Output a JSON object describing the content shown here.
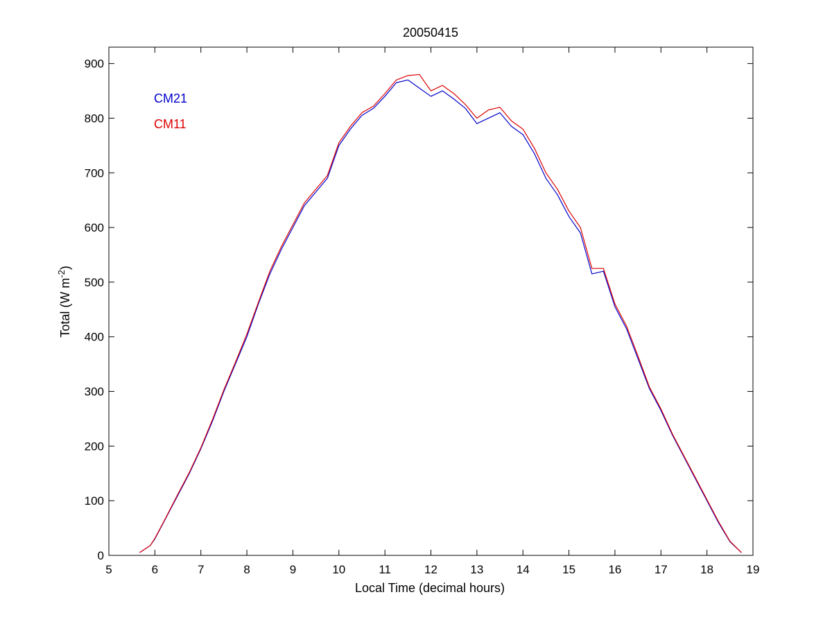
{
  "chart_data": {
    "type": "line",
    "title": "20050415",
    "xlabel": "Local Time (decimal hours)",
    "ylabel": {
      "main": "Total (W m",
      "superscript": "-2",
      "suffix": ")"
    },
    "xlim": [
      5,
      19
    ],
    "ylim": [
      0,
      930
    ],
    "xticks": [
      5,
      6,
      7,
      8,
      9,
      10,
      11,
      12,
      13,
      14,
      15,
      16,
      17,
      18,
      19
    ],
    "yticks": [
      0,
      100,
      200,
      300,
      400,
      500,
      600,
      700,
      800,
      900
    ],
    "grid": false,
    "legend_position": "top-left",
    "series": [
      {
        "name": "CM21",
        "color": "#0000cc",
        "x": [
          5.67,
          5.9,
          6.0,
          6.25,
          6.5,
          6.75,
          7.0,
          7.25,
          7.5,
          7.75,
          8.0,
          8.25,
          8.5,
          8.75,
          9.0,
          9.25,
          9.5,
          9.75,
          10.0,
          10.25,
          10.5,
          10.75,
          11.0,
          11.25,
          11.5,
          11.75,
          12.0,
          12.25,
          12.5,
          12.75,
          13.0,
          13.25,
          13.5,
          13.75,
          14.0,
          14.25,
          14.5,
          14.75,
          15.0,
          15.25,
          15.5,
          15.75,
          16.0,
          16.25,
          16.5,
          16.75,
          17.0,
          17.25,
          17.5,
          17.75,
          18.0,
          18.25,
          18.5,
          18.75
        ],
        "y": [
          5,
          18,
          30,
          70,
          110,
          150,
          195,
          245,
          300,
          350,
          400,
          460,
          515,
          560,
          600,
          640,
          665,
          690,
          750,
          780,
          805,
          818,
          840,
          865,
          870,
          855,
          840,
          850,
          835,
          818,
          790,
          800,
          810,
          785,
          770,
          735,
          690,
          660,
          620,
          590,
          515,
          520,
          455,
          415,
          360,
          305,
          265,
          220,
          180,
          140,
          100,
          60,
          25,
          5
        ]
      },
      {
        "name": "CM11",
        "color": "#dd0000",
        "x": [
          5.67,
          5.9,
          6.0,
          6.25,
          6.5,
          6.75,
          7.0,
          7.25,
          7.5,
          7.75,
          8.0,
          8.25,
          8.5,
          8.75,
          9.0,
          9.25,
          9.5,
          9.75,
          10.0,
          10.25,
          10.5,
          10.75,
          11.0,
          11.25,
          11.5,
          11.75,
          12.0,
          12.25,
          12.5,
          12.75,
          13.0,
          13.25,
          13.5,
          13.75,
          14.0,
          14.25,
          14.5,
          14.75,
          15.0,
          15.25,
          15.5,
          15.75,
          16.0,
          16.25,
          16.5,
          16.75,
          17.0,
          17.25,
          17.5,
          17.75,
          18.0,
          18.25,
          18.5,
          18.75
        ],
        "y": [
          5,
          18,
          31,
          71,
          112,
          152,
          197,
          248,
          303,
          353,
          405,
          463,
          520,
          565,
          605,
          645,
          670,
          695,
          755,
          785,
          810,
          822,
          845,
          870,
          878,
          880,
          850,
          860,
          845,
          825,
          800,
          815,
          820,
          795,
          780,
          745,
          700,
          670,
          630,
          600,
          525,
          525,
          460,
          420,
          365,
          308,
          268,
          222,
          182,
          142,
          102,
          62,
          26,
          5
        ]
      }
    ]
  }
}
